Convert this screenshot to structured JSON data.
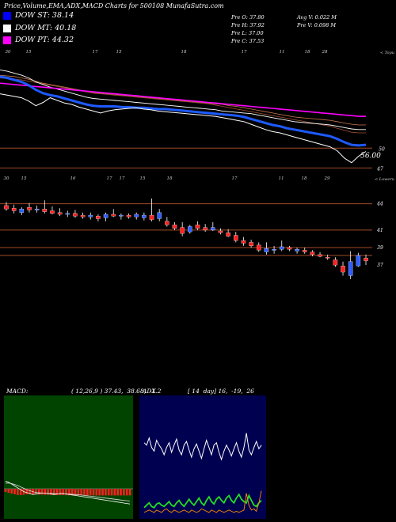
{
  "header": {
    "title": "Price,Volume,EMA,ADX,MACD Charts for 500108  MunafaSutra.com"
  },
  "legend": [
    {
      "label": "DOW ST: 38.14",
      "color": "#0000ff"
    },
    {
      "label": "DOW MT: 40.18",
      "color": "#ffffff"
    },
    {
      "label": "DOW PT: 44.32",
      "color": "#ff00ff"
    }
  ],
  "ohlc": {
    "col1": [
      "Pre  O: 37.80",
      "Pre  H: 37.92",
      "Pre  L: 37.00",
      "Pre  C: 37.53"
    ],
    "col2": [
      "Avg V: 0.022  M",
      "Pre  V: 0.098  M"
    ]
  },
  "panels": {
    "macd_title": "MACD:",
    "macd_params": "( 12,26,9 ) 37.43,  38.68,  -1.2",
    "adx_title": "ADX",
    "adx_params": "[ 14  day] 16,  -19,  26"
  },
  "colors": {
    "up_candle": "#2f5dff",
    "down_candle": "#ff2020",
    "level_line": "#a24a28",
    "ema_blue": "#1e5aff",
    "ema_magenta": "#ff00ff",
    "adx_plus": "#22dd22",
    "adx_minus": "#ff8c00",
    "macd_hist": "#ff2020",
    "macd_panel_bg": "#004400",
    "adx_panel_bg": "#000050"
  },
  "chart_data": [
    {
      "type": "line",
      "name": "ema-panel",
      "x_tick_labels": [
        "30",
        "15",
        "17",
        "15",
        "18",
        "17",
        "11",
        "18",
        "28"
      ],
      "x_axis_label": "< Topu",
      "y_tick_labels": [
        "56.00",
        "50",
        "47"
      ],
      "reference_levels": [
        50,
        47
      ],
      "series": [
        {
          "name": "price",
          "values": [
            58.2,
            58.0,
            57.8,
            57.6,
            57.1,
            56.4,
            56.9,
            57.6,
            57.2,
            56.8,
            56.6,
            56.2,
            55.9,
            55.6,
            55.3,
            55.6,
            55.8,
            55.9,
            56.0,
            56.1,
            55.9,
            55.8,
            55.6,
            55.5,
            55.4,
            55.3,
            55.2,
            55.1,
            55.0,
            54.9,
            54.8,
            54.6,
            54.4,
            54.2,
            54.0,
            53.6,
            53.2,
            52.8,
            52.5,
            52.3,
            52.0,
            51.7,
            51.4,
            51.1,
            50.8,
            50.5,
            50.2,
            49.6,
            48.5,
            47.8,
            48.8,
            49.5
          ]
        },
        {
          "name": "ema-blue",
          "values": [
            60.8,
            60.6,
            60.3,
            60.0,
            59.5,
            58.8,
            58.3,
            58.0,
            57.8,
            57.5,
            57.2,
            56.9,
            56.6,
            56.4,
            56.3,
            56.3,
            56.3,
            56.2,
            56.2,
            56.1,
            56.1,
            56.0,
            55.9,
            55.9,
            55.8,
            55.7,
            55.6,
            55.5,
            55.4,
            55.3,
            55.2,
            55.1,
            55.0,
            54.9,
            54.7,
            54.4,
            54.1,
            53.8,
            53.5,
            53.3,
            53.0,
            52.8,
            52.6,
            52.4,
            52.2,
            52.0,
            51.8,
            51.4,
            50.9,
            50.5,
            50.4,
            50.5
          ]
        },
        {
          "name": "ema-white",
          "values": [
            61.8,
            61.6,
            61.3,
            61.0,
            60.6,
            60.0,
            59.6,
            59.2,
            58.9,
            58.6,
            58.3,
            58.0,
            57.7,
            57.5,
            57.4,
            57.3,
            57.2,
            57.1,
            57.0,
            56.9,
            56.8,
            56.7,
            56.6,
            56.5,
            56.4,
            56.3,
            56.2,
            56.1,
            56.0,
            55.9,
            55.8,
            55.6,
            55.5,
            55.4,
            55.3,
            55.2,
            55.0,
            54.8,
            54.6,
            54.4,
            54.2,
            54.0,
            53.9,
            53.8,
            53.7,
            53.6,
            53.5,
            53.3,
            53.1,
            52.9,
            52.8,
            52.8
          ]
        },
        {
          "name": "ema-magenta",
          "values": [
            59.8,
            59.7,
            59.6,
            59.5,
            59.4,
            59.3,
            59.2,
            59.1,
            59.0,
            58.9,
            58.8,
            58.7,
            58.6,
            58.5,
            58.4,
            58.3,
            58.2,
            58.1,
            58.0,
            57.9,
            57.8,
            57.7,
            57.6,
            57.5,
            57.4,
            57.3,
            57.2,
            57.1,
            57.0,
            56.9,
            56.8,
            56.7,
            56.6,
            56.5,
            56.4,
            56.3,
            56.2,
            56.1,
            56.0,
            55.9,
            55.8,
            55.7,
            55.6,
            55.5,
            55.4,
            55.3,
            55.2,
            55.1,
            55.0,
            54.9,
            54.8,
            54.8
          ]
        },
        {
          "name": "ema-orange1",
          "values": [
            61.0,
            60.9,
            60.8,
            60.6,
            60.4,
            60.1,
            59.8,
            59.6,
            59.4,
            59.2,
            59.0,
            58.8,
            58.6,
            58.4,
            58.3,
            58.2,
            58.1,
            58.0,
            57.9,
            57.8,
            57.7,
            57.6,
            57.5,
            57.4,
            57.3,
            57.2,
            57.1,
            57.0,
            56.9,
            56.8,
            56.7,
            56.6,
            56.4,
            56.3,
            56.1,
            55.9,
            55.7,
            55.5,
            55.3,
            55.1,
            54.9,
            54.7,
            54.6,
            54.5,
            54.4,
            54.3,
            54.2,
            54.0,
            53.8,
            53.6,
            53.5,
            53.5
          ]
        },
        {
          "name": "ema-orange2",
          "values": [
            60.6,
            60.5,
            60.4,
            60.3,
            60.1,
            59.9,
            59.7,
            59.5,
            59.3,
            59.1,
            58.9,
            58.7,
            58.5,
            58.3,
            58.2,
            58.1,
            58.0,
            57.9,
            57.8,
            57.7,
            57.6,
            57.5,
            57.4,
            57.3,
            57.2,
            57.1,
            57.0,
            56.9,
            56.8,
            56.7,
            56.5,
            56.3,
            56.1,
            55.9,
            55.7,
            55.5,
            55.3,
            55.1,
            54.9,
            54.7,
            54.5,
            54.3,
            54.1,
            53.9,
            53.7,
            53.5,
            53.3,
            53.0,
            52.7,
            52.4,
            52.3,
            52.3
          ]
        }
      ],
      "ylim": [
        45.5,
        64
      ]
    },
    {
      "type": "candlestick",
      "name": "price-panel",
      "x_tick_labels": [
        "30",
        "15",
        "16",
        "17",
        "17",
        "15",
        "18",
        "17",
        "11",
        "18",
        "29"
      ],
      "x_axis_label": "< Loweru",
      "y_tick_labels": [
        "44",
        "41",
        "39",
        "37"
      ],
      "reference_levels": [
        44,
        41,
        39,
        38.1
      ],
      "candles": [
        {
          "o": 43.8,
          "h": 44.2,
          "l": 43.2,
          "c": 43.4
        },
        {
          "o": 43.5,
          "h": 43.9,
          "l": 42.9,
          "c": 43.2
        },
        {
          "o": 43.0,
          "h": 43.6,
          "l": 42.7,
          "c": 43.4
        },
        {
          "o": 43.6,
          "h": 44.1,
          "l": 43.0,
          "c": 43.3
        },
        {
          "o": 43.4,
          "h": 43.8,
          "l": 43.0,
          "c": 43.4
        },
        {
          "o": 43.4,
          "h": 44.4,
          "l": 42.9,
          "c": 43.1
        },
        {
          "o": 43.2,
          "h": 43.7,
          "l": 42.8,
          "c": 42.9
        },
        {
          "o": 43.0,
          "h": 43.5,
          "l": 42.6,
          "c": 42.8
        },
        {
          "o": 42.8,
          "h": 43.2,
          "l": 42.5,
          "c": 42.9
        },
        {
          "o": 42.9,
          "h": 43.3,
          "l": 42.4,
          "c": 42.6
        },
        {
          "o": 42.7,
          "h": 43.0,
          "l": 42.3,
          "c": 42.5
        },
        {
          "o": 42.5,
          "h": 43.0,
          "l": 42.2,
          "c": 42.7
        },
        {
          "o": 42.6,
          "h": 42.8,
          "l": 42.0,
          "c": 42.3
        },
        {
          "o": 42.4,
          "h": 43.0,
          "l": 42.0,
          "c": 42.8
        },
        {
          "o": 42.8,
          "h": 43.4,
          "l": 42.5,
          "c": 42.6
        },
        {
          "o": 42.6,
          "h": 42.9,
          "l": 42.2,
          "c": 42.7
        },
        {
          "o": 42.7,
          "h": 42.9,
          "l": 42.3,
          "c": 42.5
        },
        {
          "o": 42.5,
          "h": 43.0,
          "l": 42.2,
          "c": 42.8
        },
        {
          "o": 42.4,
          "h": 43.0,
          "l": 42.1,
          "c": 42.7
        },
        {
          "o": 42.7,
          "h": 44.6,
          "l": 42.0,
          "c": 42.2
        },
        {
          "o": 42.3,
          "h": 43.4,
          "l": 42.0,
          "c": 43.0
        },
        {
          "o": 42.0,
          "h": 42.5,
          "l": 41.4,
          "c": 41.6
        },
        {
          "o": 41.6,
          "h": 41.9,
          "l": 41.0,
          "c": 41.2
        },
        {
          "o": 41.3,
          "h": 41.9,
          "l": 40.3,
          "c": 40.6
        },
        {
          "o": 40.8,
          "h": 41.6,
          "l": 40.6,
          "c": 41.4
        },
        {
          "o": 41.6,
          "h": 42.0,
          "l": 41.0,
          "c": 41.2
        },
        {
          "o": 41.3,
          "h": 41.7,
          "l": 40.8,
          "c": 41.0
        },
        {
          "o": 41.0,
          "h": 41.9,
          "l": 40.9,
          "c": 41.3
        },
        {
          "o": 40.9,
          "h": 41.2,
          "l": 40.5,
          "c": 40.7
        },
        {
          "o": 40.7,
          "h": 41.1,
          "l": 40.2,
          "c": 40.3
        },
        {
          "o": 40.4,
          "h": 40.8,
          "l": 39.6,
          "c": 39.8
        },
        {
          "o": 39.8,
          "h": 40.2,
          "l": 39.2,
          "c": 39.5
        },
        {
          "o": 39.6,
          "h": 39.9,
          "l": 39.0,
          "c": 39.2
        },
        {
          "o": 39.3,
          "h": 39.6,
          "l": 38.5,
          "c": 38.7
        },
        {
          "o": 38.5,
          "h": 39.6,
          "l": 38.2,
          "c": 38.9
        },
        {
          "o": 38.7,
          "h": 39.2,
          "l": 38.3,
          "c": 38.8
        },
        {
          "o": 38.8,
          "h": 39.8,
          "l": 38.6,
          "c": 39.1
        },
        {
          "o": 39.0,
          "h": 39.2,
          "l": 38.6,
          "c": 38.8
        },
        {
          "o": 38.6,
          "h": 39.0,
          "l": 38.3,
          "c": 38.8
        },
        {
          "o": 38.7,
          "h": 39.0,
          "l": 38.3,
          "c": 38.5
        },
        {
          "o": 38.5,
          "h": 38.7,
          "l": 38.0,
          "c": 38.2
        },
        {
          "o": 38.2,
          "h": 38.5,
          "l": 37.9,
          "c": 38.0
        },
        {
          "o": 37.9,
          "h": 38.2,
          "l": 37.6,
          "c": 37.8
        },
        {
          "o": 37.6,
          "h": 37.9,
          "l": 36.8,
          "c": 37.0
        },
        {
          "o": 36.9,
          "h": 37.4,
          "l": 35.8,
          "c": 36.2
        },
        {
          "o": 35.8,
          "h": 38.6,
          "l": 35.4,
          "c": 37.4
        },
        {
          "o": 36.9,
          "h": 38.4,
          "l": 36.8,
          "c": 38.1
        },
        {
          "o": 37.8,
          "h": 38.2,
          "l": 37.0,
          "c": 37.5
        }
      ],
      "ylim": [
        32.5,
        46.5
      ]
    },
    {
      "type": "line",
      "name": "macd-panel",
      "title": "MACD:",
      "series": [
        {
          "name": "macd",
          "values": [
            0.8,
            0.7,
            0.5,
            0.3,
            0.1,
            -0.1,
            -0.3,
            -0.4,
            -0.5,
            -0.6,
            -0.55,
            -0.5,
            -0.45,
            -0.45,
            -0.5,
            -0.55,
            -0.6,
            -0.55,
            -0.5,
            -0.5,
            -0.55,
            -0.6,
            -0.65,
            -0.7,
            -0.75,
            -0.8,
            -0.85,
            -0.9,
            -0.95,
            -1.0,
            -1.05,
            -1.1,
            -1.15,
            -1.2,
            -1.25,
            -1.3,
            -1.35,
            -1.4,
            -1.45,
            -1.5,
            -1.55,
            -1.6
          ]
        },
        {
          "name": "signal",
          "values": [
            0.6,
            0.6,
            0.55,
            0.45,
            0.35,
            0.2,
            0.05,
            -0.1,
            -0.2,
            -0.3,
            -0.38,
            -0.42,
            -0.45,
            -0.46,
            -0.48,
            -0.5,
            -0.52,
            -0.53,
            -0.53,
            -0.53,
            -0.54,
            -0.56,
            -0.58,
            -0.6,
            -0.63,
            -0.66,
            -0.7,
            -0.74,
            -0.78,
            -0.82,
            -0.86,
            -0.9,
            -0.94,
            -0.98,
            -1.02,
            -1.06,
            -1.1,
            -1.14,
            -1.18,
            -1.22,
            -1.26,
            -1.3
          ]
        }
      ],
      "histogram": [
        0.2,
        0.25,
        0.3,
        0.35,
        0.4,
        0.4,
        0.38,
        0.35,
        0.35,
        0.35,
        0.36,
        0.36,
        0.37,
        0.38,
        0.38,
        0.39,
        0.39,
        0.4,
        0.4,
        0.4,
        0.41,
        0.41,
        0.41,
        0.41,
        0.42,
        0.42,
        0.42,
        0.42,
        0.42,
        0.42,
        0.42,
        0.42,
        0.42,
        0.42,
        0.42,
        0.42,
        0.42,
        0.42,
        0.42,
        0.42,
        0.42,
        0.42
      ],
      "ylim": [
        -4,
        4
      ]
    },
    {
      "type": "line",
      "name": "adx-panel",
      "title": "ADX",
      "series": [
        {
          "name": "adx",
          "values": [
            62,
            60,
            66,
            58,
            55,
            64,
            60,
            57,
            52,
            58,
            62,
            54,
            60,
            65,
            56,
            52,
            60,
            63,
            56,
            50,
            57,
            61,
            55,
            49,
            57,
            64,
            58,
            52,
            60,
            62,
            54,
            48,
            55,
            60,
            56,
            51,
            57,
            62,
            55,
            50,
            58,
            70,
            56,
            52,
            58,
            63,
            57,
            60
          ]
        },
        {
          "name": "plus_di",
          "values": [
            8,
            10,
            12,
            9,
            8,
            11,
            12,
            10,
            9,
            11,
            13,
            10,
            9,
            12,
            14,
            11,
            9,
            12,
            15,
            12,
            10,
            13,
            16,
            12,
            10,
            14,
            17,
            13,
            11,
            15,
            17,
            14,
            12,
            16,
            18,
            14,
            12,
            16,
            19,
            15,
            13,
            12,
            18,
            14,
            10,
            9,
            12,
            14
          ]
        },
        {
          "name": "minus_di",
          "values": [
            4,
            5,
            6,
            5,
            4,
            6,
            5,
            4,
            6,
            7,
            5,
            4,
            6,
            5,
            4,
            5,
            6,
            5,
            4,
            6,
            5,
            4,
            5,
            7,
            6,
            5,
            4,
            6,
            5,
            4,
            6,
            5,
            4,
            5,
            6,
            5,
            4,
            5,
            4,
            5,
            6,
            20,
            10,
            6,
            7,
            5,
            12,
            22
          ]
        }
      ],
      "ylim": [
        0,
        100
      ]
    }
  ]
}
